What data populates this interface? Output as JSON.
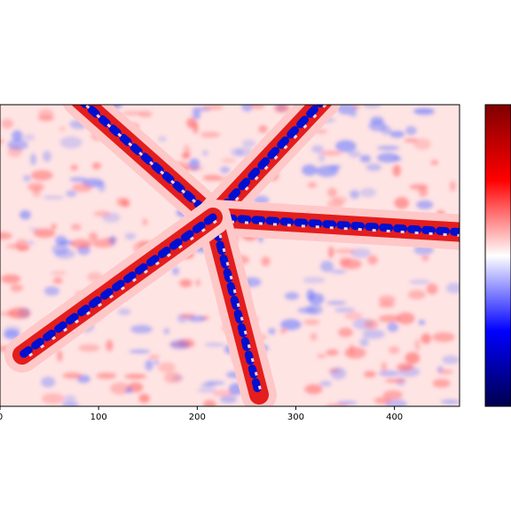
{
  "chart_data": {
    "type": "heatmap",
    "xlim": [
      0,
      466
    ],
    "xticks": [
      0,
      100,
      200,
      300,
      400
    ],
    "colormap": [
      "#00004c",
      "#0000ff",
      "#ffffff",
      "#ff0000",
      "#7f0000"
    ]
  }
}
